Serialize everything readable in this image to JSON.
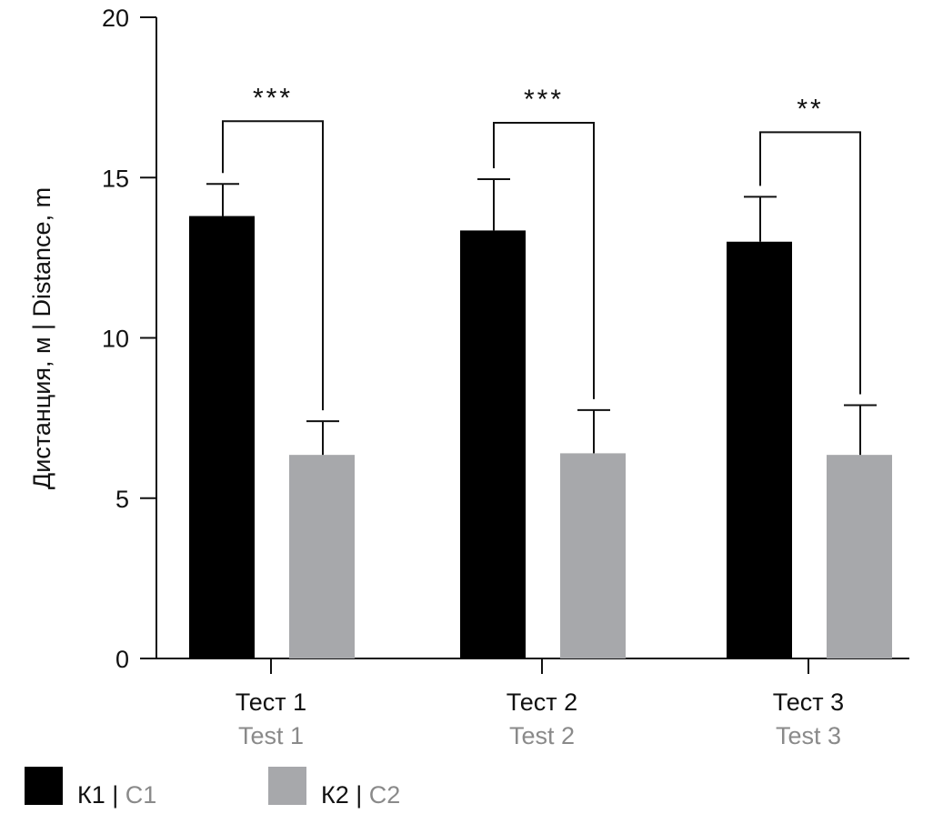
{
  "chart_data": {
    "type": "bar",
    "title": "",
    "ylabel": "Дистанция, м | Distance, m",
    "xlabel": "",
    "ylim": [
      0,
      20
    ],
    "yticks": [
      0,
      5,
      10,
      15,
      20
    ],
    "grid": false,
    "categories": [
      {
        "label": "Тест 1",
        "label_en": "Test 1"
      },
      {
        "label": "Тест 2",
        "label_en": "Test 2"
      },
      {
        "label": "Тест 3",
        "label_en": "Test 3"
      }
    ],
    "series": [
      {
        "name": "К1",
        "name_en": "C1",
        "color": "#000000",
        "values": [
          13.8,
          13.35,
          13.0
        ],
        "error_upper": [
          14.8,
          14.95,
          14.4
        ]
      },
      {
        "name": "К2",
        "name_en": "C2",
        "color": "#a7a8ab",
        "values": [
          6.35,
          6.4,
          6.35
        ],
        "error_upper": [
          7.4,
          7.75,
          7.9
        ]
      }
    ],
    "significance": [
      "***",
      "***",
      "**"
    ],
    "legend_position": "bottom-left"
  }
}
